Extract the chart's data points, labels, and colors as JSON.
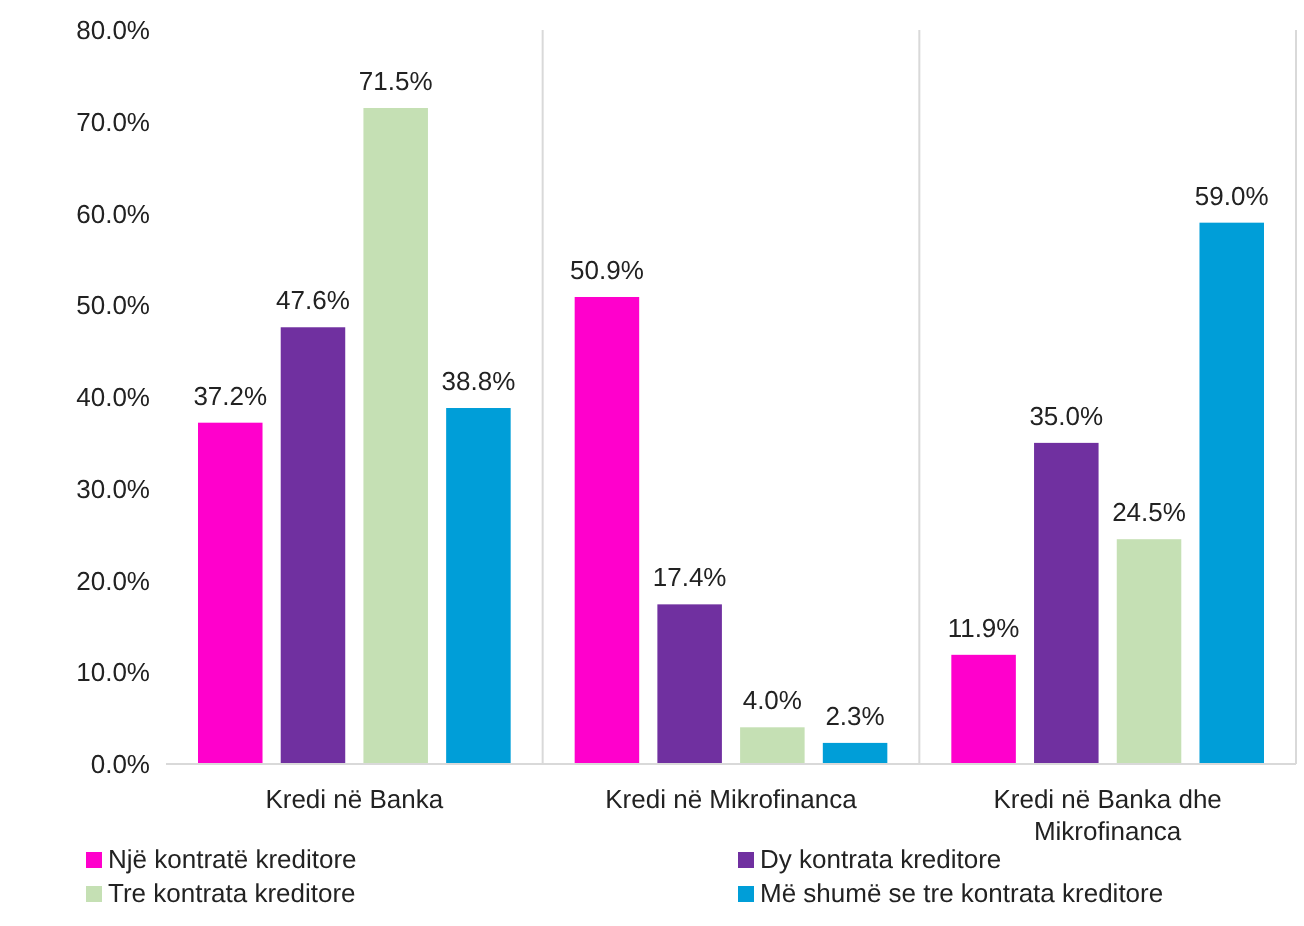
{
  "chart_data": {
    "type": "bar",
    "categories": [
      "Kredi në Banka",
      "Kredi në Mikrofinanca",
      "Kredi në Banka dhe Mikrofinanca"
    ],
    "series": [
      {
        "name": "Një kontratë kreditore",
        "color": "#ff00cc",
        "values": [
          37.2,
          50.9,
          11.9
        ]
      },
      {
        "name": "Dy kontrata kreditore",
        "color": "#7030a0",
        "values": [
          47.6,
          17.4,
          35.0
        ]
      },
      {
        "name": "Tre kontrata kreditore",
        "color": "#c5e0b4",
        "values": [
          71.5,
          4.0,
          24.5
        ]
      },
      {
        "name": "Më shumë se tre kontrata kreditore",
        "color": "#009ed8",
        "values": [
          38.8,
          2.3,
          59.0
        ]
      }
    ],
    "ylim": [
      0,
      80
    ],
    "yticks": [
      {
        "value": 0,
        "label": "0.0%"
      },
      {
        "value": 10,
        "label": "10.0%"
      },
      {
        "value": 20,
        "label": "20.0%"
      },
      {
        "value": 30,
        "label": "30.0%"
      },
      {
        "value": 40,
        "label": "40.0%"
      },
      {
        "value": 50,
        "label": "50.0%"
      },
      {
        "value": 60,
        "label": "60.0%"
      },
      {
        "value": 70,
        "label": "70.0%"
      },
      {
        "value": 80,
        "label": "80.0%"
      }
    ],
    "value_labels": [
      [
        "37.2%",
        "50.9%",
        "11.9%"
      ],
      [
        "47.6%",
        "17.4%",
        "35.0%"
      ],
      [
        "71.5%",
        "4.0%",
        "24.5%"
      ],
      [
        "38.8%",
        "2.3%",
        "59.0%"
      ]
    ],
    "grid": "x",
    "legend": "bottom"
  }
}
